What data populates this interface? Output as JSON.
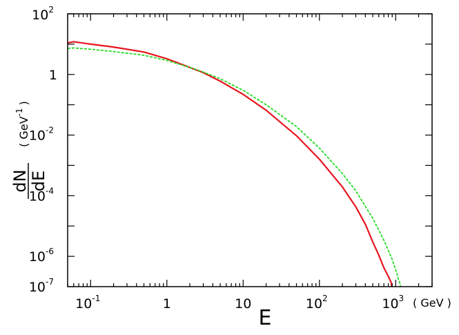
{
  "chart_data": {
    "type": "line",
    "xscale": "log",
    "yscale": "log",
    "xlim": [
      0.05,
      3000
    ],
    "ylim": [
      1e-07,
      100
    ],
    "xlabel": "E",
    "xunit": "( GeV )",
    "ylabel_num": "dN",
    "ylabel_den": "dE",
    "yunit": {
      "pre": "( GeV",
      "sup": "-1",
      "post": ")"
    },
    "x_ticks": [
      {
        "value": 0.1,
        "base": "10",
        "exp": "-1"
      },
      {
        "value": 1,
        "base": "1",
        "exp": ""
      },
      {
        "value": 10,
        "base": "10",
        "exp": ""
      },
      {
        "value": 100,
        "base": "10",
        "exp": "2"
      },
      {
        "value": 1000,
        "base": "10",
        "exp": "3"
      }
    ],
    "y_ticks": [
      {
        "value": 1e-07,
        "base": "10",
        "exp": "-7"
      },
      {
        "value": 1e-06,
        "base": "10",
        "exp": "-6"
      },
      {
        "value": 0.0001,
        "base": "10",
        "exp": "-4"
      },
      {
        "value": 0.01,
        "base": "10",
        "exp": "-2"
      },
      {
        "value": 1,
        "base": "1",
        "exp": ""
      },
      {
        "value": 100,
        "base": "10",
        "exp": "2"
      }
    ],
    "series": [
      {
        "color": "#e8141e",
        "style": "solid",
        "x": [
          0.05,
          0.06,
          0.1,
          0.2,
          0.5,
          1,
          2,
          3,
          5,
          10,
          20,
          50,
          100,
          200,
          300,
          400,
          500,
          600,
          700,
          800,
          880,
          880
        ],
        "y": [
          11,
          12,
          10,
          8,
          5.5,
          3.3,
          1.7,
          1.15,
          0.6,
          0.22,
          0.066,
          0.0095,
          0.0016,
          0.000195,
          4.3e-05,
          1.15e-05,
          3e-06,
          1.1e-06,
          4.2e-07,
          2.2e-07,
          1.3e-07,
          1e-07
        ]
      },
      {
        "color": "#1fdc1f",
        "style": "dashed",
        "x": [
          0.05,
          0.06,
          0.1,
          0.2,
          0.5,
          1,
          2,
          3,
          5,
          10,
          20,
          50,
          100,
          200,
          300,
          500,
          700,
          900,
          1000,
          1100,
          1150,
          1150
        ],
        "y": [
          7.2,
          7.5,
          6.8,
          5.7,
          4.3,
          2.9,
          1.7,
          1.2,
          0.72,
          0.3,
          0.1,
          0.019,
          0.0037,
          0.00054,
          0.000145,
          1.8e-05,
          3.4e-06,
          8e-07,
          3.6e-07,
          1.6e-07,
          1.2e-07,
          1e-07
        ]
      }
    ]
  }
}
